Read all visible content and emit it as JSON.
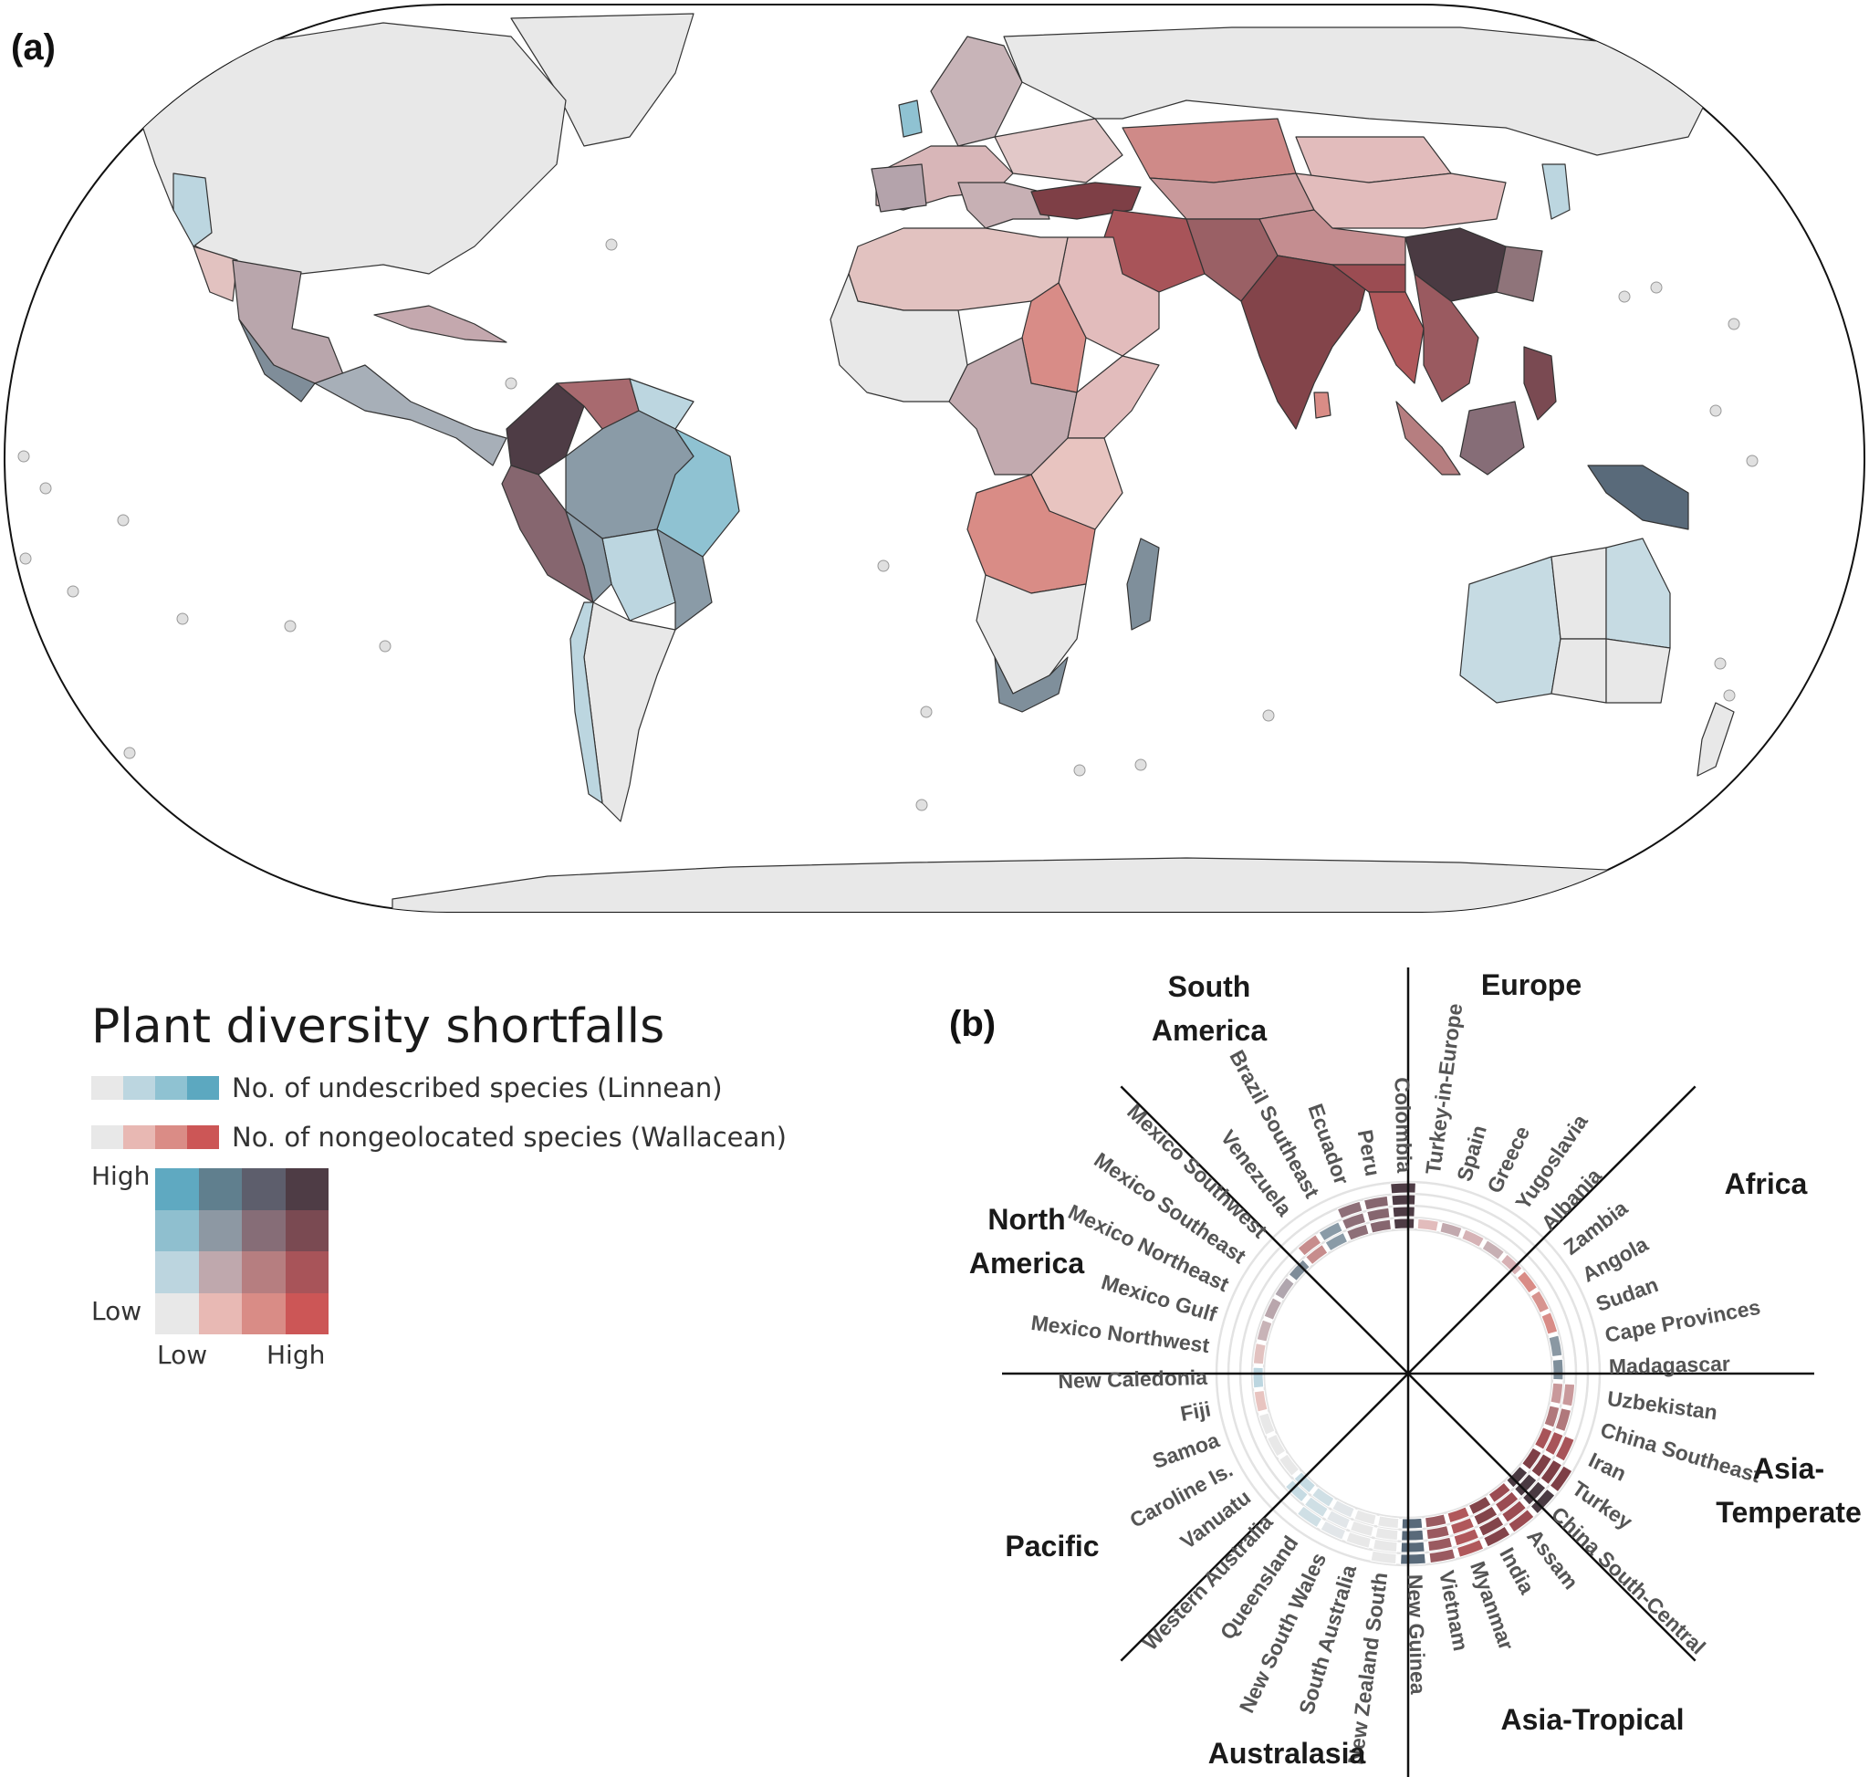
{
  "panel_a_label": "(a)",
  "panel_b_label": "(b)",
  "legend": {
    "title": "Plant diversity shortfalls",
    "linnean_label": "No. of undescribed species (Linnean)",
    "wallacean_label": "No. of nongeolocated species (Wallacean)",
    "linnean_ramp": [
      "#e8e8e8",
      "#bcd6e0",
      "#8fc2d2",
      "#5ca8c0"
    ],
    "wallacean_ramp": [
      "#e8e8e8",
      "#e8b8b3",
      "#da8c86",
      "#cc5656"
    ],
    "high_label": "High",
    "low_label": "Low",
    "x_low_label": "Low",
    "x_high_label": "High",
    "bivariate_grid": [
      [
        "#5fa9c1",
        "#607f8e",
        "#5d5e6c",
        "#4e3c45"
      ],
      [
        "#8fbfcf",
        "#8d98a3",
        "#866d77",
        "#7a4a52"
      ],
      [
        "#bcd5df",
        "#bfa8ad",
        "#b67e80",
        "#a85459"
      ],
      [
        "#e8e8e8",
        "#e8b9b4",
        "#d98c86",
        "#cc5656"
      ]
    ]
  },
  "radial": {
    "sectors": [
      {
        "name": "South America",
        "lines": [
          "South",
          "America"
        ]
      },
      {
        "name": "Europe",
        "lines": [
          "Europe"
        ]
      },
      {
        "name": "Africa",
        "lines": [
          "Africa"
        ]
      },
      {
        "name": "Asia-Temperate",
        "lines": [
          "Asia-",
          "Temperate"
        ]
      },
      {
        "name": "Asia-Tropical",
        "lines": [
          "Asia-Tropical"
        ]
      },
      {
        "name": "Australasia",
        "lines": [
          "Australasia"
        ]
      },
      {
        "name": "Pacific",
        "lines": [
          "Pacific"
        ]
      },
      {
        "name": "North America",
        "lines": [
          "North",
          "America"
        ]
      }
    ],
    "regions": [
      {
        "name": "Colombia",
        "color": "#4e3c45",
        "rank": 4
      },
      {
        "name": "Turkey-in-Europe",
        "color": "#e2bcbc",
        "rank": 1
      },
      {
        "name": "Spain",
        "color": "#c2a9ae",
        "rank": 1
      },
      {
        "name": "Greece",
        "color": "#d6b3b6",
        "rank": 1
      },
      {
        "name": "Yugoslavia",
        "color": "#c7b0b4",
        "rank": 1
      },
      {
        "name": "Albania",
        "color": "#d7b1b4",
        "rank": 1
      },
      {
        "name": "Zambia",
        "color": "#d98c86",
        "rank": 1
      },
      {
        "name": "Angola",
        "color": "#d7948f",
        "rank": 1
      },
      {
        "name": "Sudan",
        "color": "#d88c87",
        "rank": 1
      },
      {
        "name": "Cape Provinces",
        "color": "#8a98a3",
        "rank": 1
      },
      {
        "name": "Madagascar",
        "color": "#7f8f9b",
        "rank": 1
      },
      {
        "name": "Uzbekistan",
        "color": "#c9999b",
        "rank": 2
      },
      {
        "name": "China Southeast",
        "color": "#b0787b",
        "rank": 2
      },
      {
        "name": "Iran",
        "color": "#a85459",
        "rank": 3
      },
      {
        "name": "Turkey",
        "color": "#7e3f46",
        "rank": 4
      },
      {
        "name": "China South-Central",
        "color": "#4a3a42",
        "rank": 4
      },
      {
        "name": "Assam",
        "color": "#9b4c52",
        "rank": 4
      },
      {
        "name": "India",
        "color": "#83444a",
        "rank": 4
      },
      {
        "name": "Myanmar",
        "color": "#b0585b",
        "rank": 4
      },
      {
        "name": "Vietnam",
        "color": "#9a5a60",
        "rank": 4
      },
      {
        "name": "New Guinea",
        "color": "#596a7a",
        "rank": 4
      },
      {
        "name": "New Zealand South",
        "color": "#e8e8e8",
        "rank": 4
      },
      {
        "name": "South Australia",
        "color": "#e8e8e8",
        "rank": 3
      },
      {
        "name": "New South Wales",
        "color": "#e2e6e9",
        "rank": 3
      },
      {
        "name": "Queensland",
        "color": "#cfdfe5",
        "rank": 3
      },
      {
        "name": "Western Australia",
        "color": "#c6dbe3",
        "rank": 2
      },
      {
        "name": "Vanuatu",
        "color": "#e8e8e8",
        "rank": 1
      },
      {
        "name": "Caroline Is.",
        "color": "#e8e8e8",
        "rank": 1
      },
      {
        "name": "Samoa",
        "color": "#e8e8e8",
        "rank": 1
      },
      {
        "name": "Fiji",
        "color": "#e8c4c0",
        "rank": 1
      },
      {
        "name": "New Caledonia",
        "color": "#bcd6e0",
        "rank": 1
      },
      {
        "name": "Mexico Northwest",
        "color": "#e2c2c0",
        "rank": 1
      },
      {
        "name": "Mexico Gulf",
        "color": "#c8b3b7",
        "rank": 1
      },
      {
        "name": "Mexico Northeast",
        "color": "#b9a6ac",
        "rank": 1
      },
      {
        "name": "Mexico Southeast",
        "color": "#b0a6ae",
        "rank": 1
      },
      {
        "name": "Mexico Southwest",
        "color": "#7f8d99",
        "rank": 1
      },
      {
        "name": "Venezuela",
        "color": "#c78d8d",
        "rank": 2
      },
      {
        "name": "Brazil Southeast",
        "color": "#8a9ba7",
        "rank": 2
      },
      {
        "name": "Ecuador",
        "color": "#8e6f78",
        "rank": 3
      },
      {
        "name": "Peru",
        "color": "#86666f",
        "rank": 3
      }
    ]
  }
}
